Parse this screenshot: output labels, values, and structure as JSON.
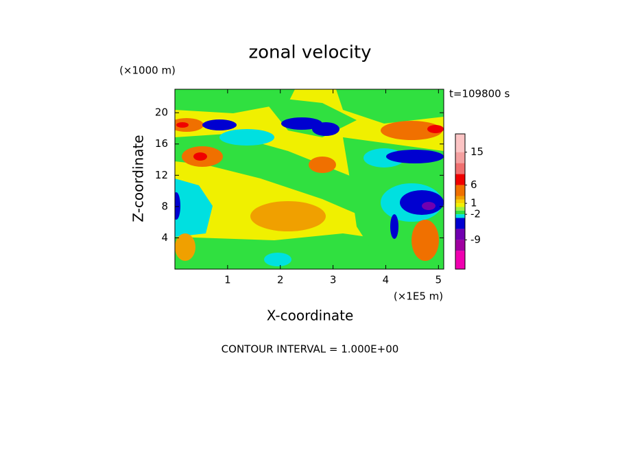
{
  "chart_data": {
    "type": "contour",
    "title": "zonal velocity",
    "x_label": "X-coordinate",
    "y_label": "Z-coordinate",
    "x_unit": "(×1E5 m)",
    "y_unit": "(×1000 m)",
    "time_label": "t=109800 s",
    "note": "CONTOUR INTERVAL = 1.000E+00",
    "xlim": [
      0,
      5.1
    ],
    "xticks": [
      1,
      2,
      3,
      4,
      5
    ],
    "ylim": [
      0,
      23
    ],
    "yticks": [
      4,
      8,
      12,
      16,
      20
    ],
    "colorbar": {
      "levels": [
        20,
        15,
        12,
        9,
        6,
        3,
        2,
        1,
        0,
        -1,
        -2,
        -3,
        -6,
        -9,
        -12,
        -17
      ],
      "colors": [
        "#fcc4c4",
        "#f4a0a0",
        "#f07070",
        "#f00000",
        "#f07000",
        "#f0a000",
        "#f8d000",
        "#f0f000",
        "#a0f040",
        "#30e040",
        "#00e0e0",
        "#0000d0",
        "#7000b0",
        "#a000a0",
        "#f000b0"
      ],
      "ticks": [
        15,
        6,
        1,
        -2,
        -9
      ]
    }
  }
}
